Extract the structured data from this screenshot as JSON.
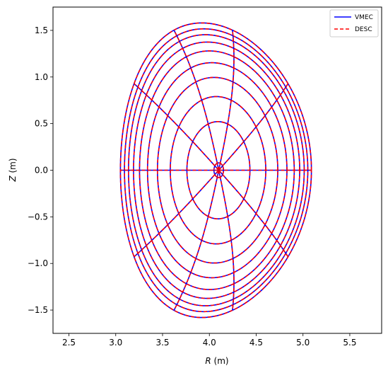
{
  "chart_data": {
    "type": "line",
    "title": "",
    "xlabel_italic": "R",
    "xlabel_unit": " (m)",
    "ylabel_italic": "Z",
    "ylabel_unit": " (m)",
    "xlim": [
      2.33,
      5.84
    ],
    "ylim": [
      -1.75,
      1.75
    ],
    "x_ticks": [
      2.5,
      3.0,
      3.5,
      4.0,
      4.5,
      5.0,
      5.5
    ],
    "x_tick_labels": [
      "2.5",
      "3.0",
      "3.5",
      "4.0",
      "4.5",
      "5.0",
      "5.5"
    ],
    "y_ticks": [
      -1.5,
      -1.0,
      -0.5,
      0.0,
      0.5,
      1.0,
      1.5
    ],
    "y_tick_labels": [
      "−1.5",
      "−1.0",
      "−0.5",
      "0.0",
      "0.5",
      "1.0",
      "1.5"
    ],
    "grid": false,
    "legend_position": "top-right",
    "series": [
      {
        "name": "VMEC",
        "color": "#0000ff",
        "style": "solid"
      },
      {
        "name": "DESC",
        "color": "#ff0000",
        "style": "dashed"
      }
    ],
    "geometry": {
      "magnetic_axis": [
        4.1,
        0.0
      ],
      "flux_surface_rho": [
        0.05,
        0.33,
        0.5,
        0.63,
        0.73,
        0.81,
        0.87,
        0.92,
        0.96,
        1.0
      ],
      "boundary_R_inner": 3.05,
      "boundary_R_outer": 5.09,
      "boundary_Z_extent": 1.58,
      "boundary_R_at_top": 3.92,
      "poloidal_angles_deg": [
        0,
        36,
        72,
        108,
        144,
        180,
        216,
        252,
        288,
        324
      ]
    }
  }
}
